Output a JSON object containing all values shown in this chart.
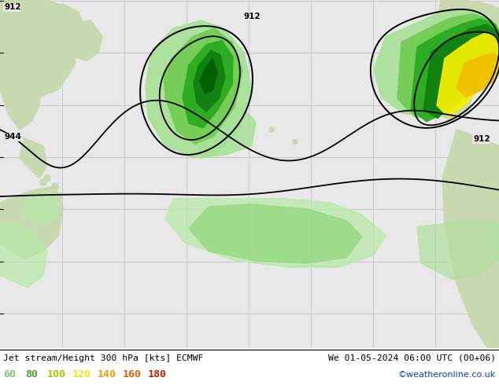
{
  "title_left": "Jet stream/Height 300 hPa [kts] ECMWF",
  "title_right": "We 01-05-2024 06:00 UTC (00+06)",
  "credit": "©weatheronline.co.uk",
  "legend_values": [
    60,
    80,
    100,
    120,
    140,
    160,
    180
  ],
  "legend_colors": [
    "#78c878",
    "#50a028",
    "#a8c800",
    "#f0e800",
    "#f0a000",
    "#e06000",
    "#c02000"
  ],
  "legend_text_colors": [
    "#78c878",
    "#50a028",
    "#a8c800",
    "#f0e800",
    "#f0a000",
    "#e06000",
    "#c02000"
  ],
  "ocean_color": "#e8e8e8",
  "land_color": "#c8d8b0",
  "grid_color": "#cccccc",
  "contour_color": "#000000",
  "bg_color": "#f0f0f0",
  "figsize": [
    6.34,
    4.9
  ],
  "dpi": 100,
  "map_extent": [
    -100,
    30,
    -10,
    65
  ],
  "jet_colors": {
    "60": "#a0e090",
    "80": "#60c040",
    "100": "#20a020",
    "120": "#f0f000",
    "140": "#f0a000",
    "160": "#e06000",
    "180": "#c02000"
  }
}
